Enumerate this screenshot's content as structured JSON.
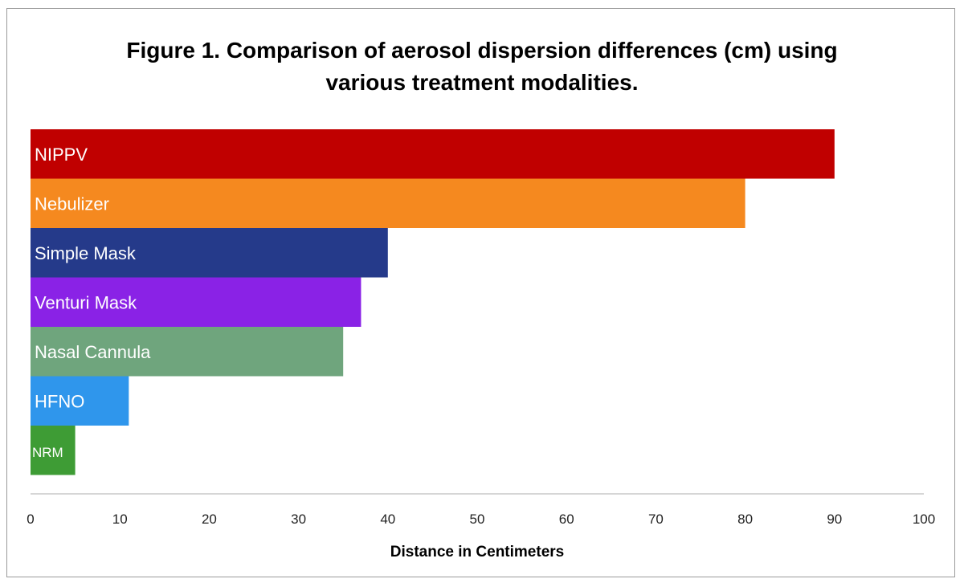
{
  "chart_data": {
    "type": "bar",
    "orientation": "horizontal",
    "title_line1": "Figure 1. Comparison of aerosol dispersion differences (cm) using",
    "title_line2": "various treatment modalities.",
    "xlabel": "Distance in Centimeters",
    "ylabel": "",
    "xlim": [
      0,
      100
    ],
    "x_ticks": [
      "0",
      "10",
      "20",
      "30",
      "40",
      "50",
      "60",
      "70",
      "80",
      "90",
      "100"
    ],
    "grid": false,
    "legend": "none",
    "categories": [
      "NIPPV",
      "Nebulizer",
      "Simple Mask",
      "Venturi Mask",
      "Nasal Cannula",
      "HFNO",
      "NRM"
    ],
    "values": [
      90,
      80,
      40,
      37,
      35,
      11,
      5
    ],
    "colors": [
      "#c00000",
      "#f5891f",
      "#253a8a",
      "#8a22e6",
      "#6fa57d",
      "#2f96ec",
      "#3e9c35"
    ]
  }
}
